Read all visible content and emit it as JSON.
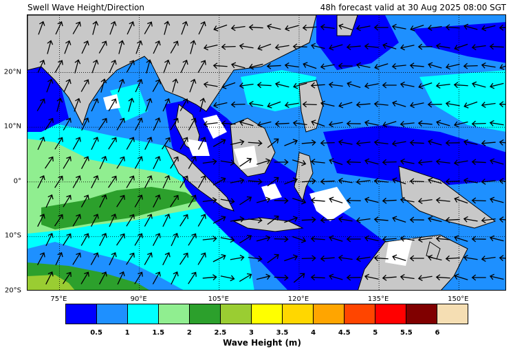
{
  "header": {
    "title_left": "Swell Wave Height/Direction",
    "title_right": "48h forecast valid at 30 Aug 2025 08:00 SGT"
  },
  "map": {
    "lon_range": [
      69,
      159
    ],
    "lat_range": [
      -20,
      30.5
    ],
    "x_ticks": [
      "75°E",
      "90°E",
      "105°E",
      "120°E",
      "135°E",
      "150°E"
    ],
    "x_tick_values": [
      75,
      90,
      105,
      120,
      135,
      150
    ],
    "y_ticks": [
      "20°N",
      "10°N",
      "0°",
      "10°S",
      "20°S"
    ],
    "y_tick_values": [
      20,
      10,
      0,
      -10,
      -20
    ],
    "land_color": "#c8c8c8",
    "gridlines": "dotted",
    "arrows": "black swell direction arrows"
  },
  "colorbar": {
    "label": "Wave Height (m)",
    "tick_labels": [
      "0.5",
      "1",
      "1.5",
      "2",
      "2.5",
      "3",
      "3.5",
      "4",
      "4.5",
      "5",
      "5.5",
      "6"
    ],
    "colors": [
      "#0000ff",
      "#1e90ff",
      "#00ffff",
      "#90ee90",
      "#2ca02c",
      "#9acd32",
      "#ffff00",
      "#ffd700",
      "#ffa500",
      "#ff4500",
      "#ff0000",
      "#800000",
      "#f5deb3"
    ]
  }
}
